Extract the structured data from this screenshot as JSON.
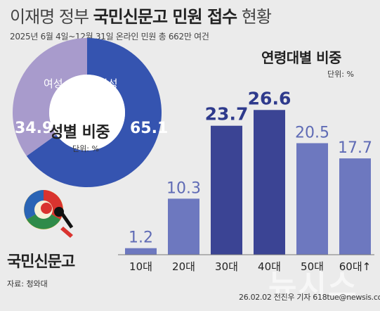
{
  "header": {
    "title_pre": "이재명 정부",
    "title_bold": "국민신문고 민원 접수",
    "title_post": "현황",
    "subtitle": "2025년 6월 4일~12월 31일 온라인 민원 총 662만 여건"
  },
  "colors": {
    "male": "#3554b0",
    "female": "#a89bcc",
    "bar_light": "#6d78bf",
    "bar_dark": "#3b4494",
    "background": "#ebebeb"
  },
  "gender_chart_title": "성별 비중",
  "gender_unit": "단위: %",
  "age_chart_title": "연령대별 비중",
  "age_unit": "단위: %",
  "logo": {
    "text": "국민신문고",
    "icon": "sinmungo-emblem-icon"
  },
  "source": "자료: 청와대",
  "credit": "26.02.02 전진우 기자 618tue@newsis.com",
  "watermark": "뉴시스",
  "chart_data": [
    {
      "type": "pie",
      "title": "성별 비중",
      "unit": "단위: %",
      "categories": [
        "남성",
        "여성"
      ],
      "values": [
        65.1,
        34.9
      ],
      "colors": [
        "#3554b0",
        "#a89bcc"
      ]
    },
    {
      "type": "bar",
      "title": "연령대별 비중",
      "unit": "단위: %",
      "categories": [
        "10대",
        "20대",
        "30대",
        "40대",
        "50대",
        "60대↑"
      ],
      "values": [
        1.2,
        10.3,
        23.7,
        26.6,
        20.5,
        17.7
      ],
      "highlight": [
        "30대",
        "40대"
      ],
      "ylim": [
        0,
        30
      ],
      "grid": false
    }
  ]
}
